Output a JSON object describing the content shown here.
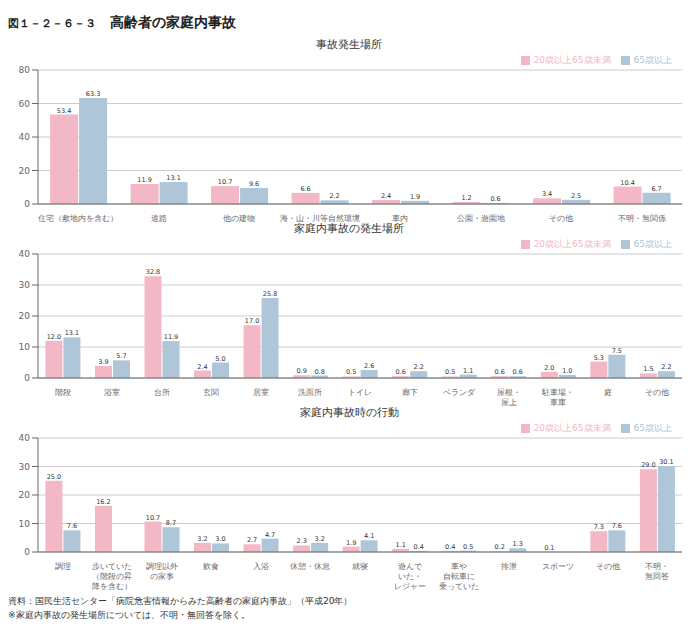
{
  "title": "高齢者の家庭内事故",
  "annotations": [
    "図１－２－６－３",
    "資料：国民生活センター「病院危害情報からみた高齢者の家庭内事故」（平成20年）",
    "※家庭内事故の発生場所については、不明・無回答を除く。"
  ],
  "chart_data": [
    {
      "type": "bar",
      "title": "事故発生場所",
      "categories": [
        "住宅（敷地内を含む）",
        "道路",
        "他の建物",
        "海・山・川等自然環境",
        "車内",
        "公園・遊園地",
        "その他",
        "不明・無関係"
      ],
      "series": [
        {
          "name": "20歳以上65歳未満",
          "color": "#f2b8c6",
          "values": [
            53.4,
            11.9,
            10.7,
            6.6,
            2.4,
            1.2,
            3.4,
            10.4
          ],
          "value_labels": [
            "53.4",
            "11.9",
            "10.7",
            "6.6",
            "2.4",
            "1.2",
            "3.4",
            "10.4"
          ]
        },
        {
          "name": "65歳以上",
          "color": "#aec6d8",
          "values": [
            63.3,
            13.1,
            9.6,
            2.2,
            1.9,
            0.6,
            2.5,
            6.7
          ],
          "value_labels": [
            "63.3",
            "13.1",
            "9.6",
            "2.2",
            "1.9",
            "0.6",
            "2.5",
            "6.7"
          ]
        }
      ],
      "ylim": [
        0,
        80
      ],
      "yticks": [
        0,
        20,
        40,
        60,
        80
      ],
      "grid": true,
      "legend": "upper right",
      "data_labels": true
    },
    {
      "type": "bar",
      "title": "家庭内事故の発生場所",
      "categories": [
        "階段",
        "浴室",
        "台所",
        "玄関",
        "居室",
        "洗面所",
        "トイレ",
        "廊下",
        "ベランダ",
        "屋根・\n屋上",
        "駐車場・\n車庫",
        "庭",
        "その他"
      ],
      "series": [
        {
          "name": "20歳以上65歳未満",
          "color": "#f2b8c6",
          "values": [
            12.0,
            3.9,
            32.8,
            2.4,
            17.0,
            0.9,
            0.5,
            0.6,
            0.5,
            0.6,
            2.0,
            5.3,
            1.5
          ],
          "value_labels": [
            "12.0",
            "3.9",
            "32.8",
            "2.4",
            "17.0",
            "0.9",
            "0.5",
            "0.6",
            "0.5",
            "0.6",
            "2.0",
            "5.3",
            "1.5"
          ]
        },
        {
          "name": "65歳以上",
          "color": "#aec6d8",
          "values": [
            13.1,
            5.7,
            11.9,
            5.0,
            25.8,
            0.8,
            2.6,
            2.2,
            1.1,
            0.6,
            1.0,
            7.5,
            2.2
          ],
          "value_labels": [
            "13.1",
            "5.7",
            "11.9",
            "5.0",
            "25.8",
            "0.8",
            "2.6",
            "2.2",
            "1.1",
            "0.6",
            "1.0",
            "7.5",
            "2.2"
          ]
        }
      ],
      "ylim": [
        0,
        40
      ],
      "yticks": [
        0,
        10,
        20,
        30,
        40
      ],
      "grid": true,
      "legend": "upper right",
      "data_labels": true
    },
    {
      "type": "bar",
      "title": "家庭内事故時の行動",
      "categories": [
        "調理",
        "歩いていた\n（階段の昇\n降を含む）",
        "調理以外\nの家事",
        "飲食",
        "入浴",
        "休憩・休息",
        "就寝",
        "遊んで\nいた・\nレジャー",
        "車や\n自転車に\n乗っていた",
        "排泄",
        "スポーツ",
        "その他",
        "不明・\n無回答"
      ],
      "series": [
        {
          "name": "20歳以上65歳未満",
          "color": "#f2b8c6",
          "values": [
            25.0,
            16.2,
            10.7,
            3.2,
            2.7,
            2.3,
            1.9,
            1.1,
            0.4,
            0.2,
            0.1,
            7.3,
            29.0
          ],
          "value_labels": [
            "25.0",
            "16.2",
            "10.7",
            "3.2",
            "2.7",
            "2.3",
            "1.9",
            "1.1",
            "0.4",
            "0.2",
            "0.1",
            "7.3",
            "29.0"
          ]
        },
        {
          "name": "65歳以上",
          "color": "#aec6d8",
          "values": [
            7.6,
            0.0,
            8.7,
            3.0,
            4.7,
            3.2,
            4.1,
            0.4,
            0.5,
            1.3,
            0.0,
            7.6,
            30.1
          ],
          "value_labels": [
            "7.6",
            null,
            "8.7",
            "3.0",
            "4.7",
            "3.2",
            "4.1",
            "0.4",
            "0.5",
            "1.3",
            null,
            "7.6",
            "30.1"
          ]
        }
      ],
      "ylim": [
        0,
        40
      ],
      "yticks": [
        0,
        10,
        20,
        30,
        40
      ],
      "grid": true,
      "legend": "upper right",
      "data_labels": true
    }
  ]
}
